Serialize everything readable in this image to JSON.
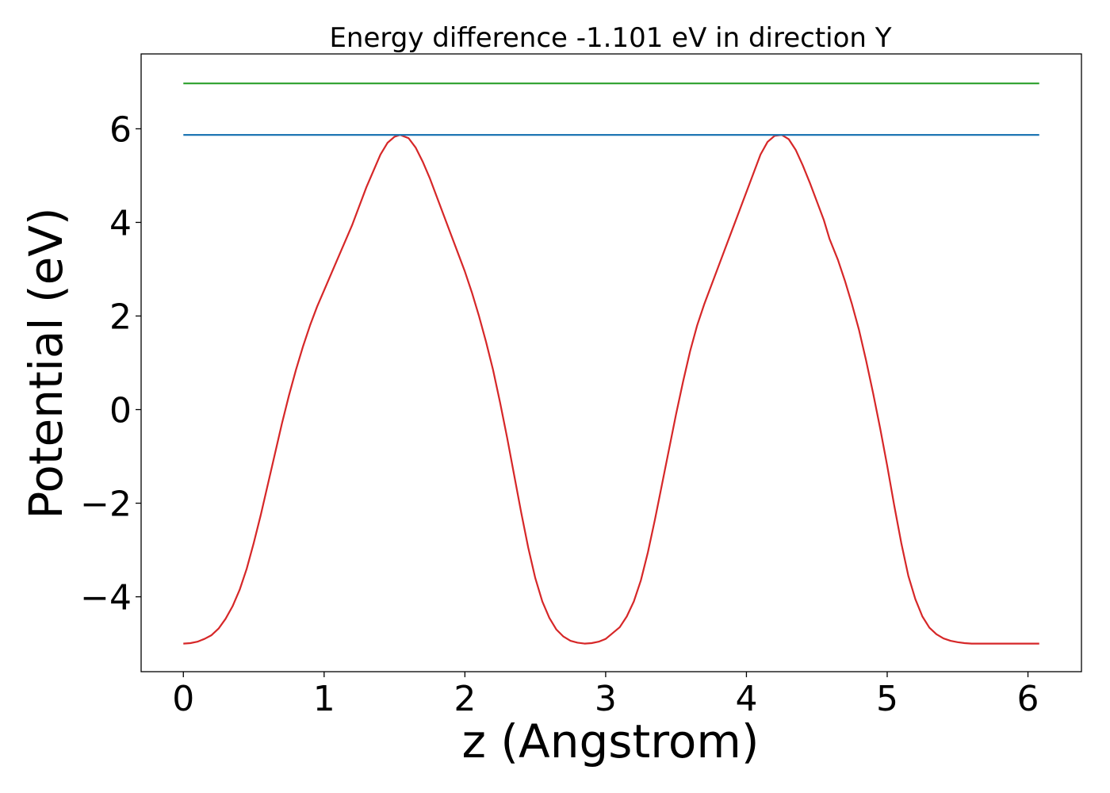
{
  "chart_data": {
    "type": "line",
    "title": "Energy difference -1.101 eV in direction Y",
    "xlabel": "z (Angstrom)",
    "ylabel": "Potential (eV)",
    "xlim": [
      -0.3,
      6.38
    ],
    "ylim": [
      -5.6,
      7.6
    ],
    "xticks": [
      0,
      1,
      2,
      3,
      4,
      5,
      6
    ],
    "xtick_labels": [
      "0",
      "1",
      "2",
      "3",
      "4",
      "5",
      "6"
    ],
    "yticks": [
      -4,
      -2,
      0,
      2,
      4,
      6
    ],
    "ytick_labels": [
      "−4",
      "−2",
      "0",
      "2",
      "4",
      "6"
    ],
    "grid": false,
    "series": [
      {
        "color": "#d62728",
        "x": [
          0.0,
          0.05,
          0.1,
          0.15,
          0.2,
          0.25,
          0.3,
          0.35,
          0.4,
          0.45,
          0.5,
          0.55,
          0.6,
          0.65,
          0.7,
          0.75,
          0.8,
          0.85,
          0.9,
          0.95,
          1.0,
          1.05,
          1.1,
          1.15,
          1.2,
          1.25,
          1.3,
          1.35,
          1.4,
          1.45,
          1.5,
          1.54,
          1.6,
          1.65,
          1.7,
          1.75,
          1.8,
          1.85,
          1.9,
          1.95,
          2.0,
          2.05,
          2.1,
          2.15,
          2.2,
          2.25,
          2.3,
          2.35,
          2.4,
          2.45,
          2.5,
          2.55,
          2.6,
          2.65,
          2.7,
          2.75,
          2.8,
          2.85,
          2.9,
          2.95,
          3.0,
          3.04,
          3.1,
          3.15,
          3.2,
          3.25,
          3.3,
          3.35,
          3.4,
          3.45,
          3.5,
          3.55,
          3.6,
          3.65,
          3.7,
          3.75,
          3.8,
          3.85,
          3.9,
          3.95,
          4.0,
          4.05,
          4.1,
          4.15,
          4.2,
          4.25,
          4.3,
          4.35,
          4.4,
          4.45,
          4.5,
          4.55,
          4.59,
          4.65,
          4.7,
          4.75,
          4.8,
          4.85,
          4.9,
          4.95,
          5.0,
          5.05,
          5.1,
          5.15,
          5.2,
          5.25,
          5.3,
          5.35,
          5.4,
          5.45,
          5.5,
          5.55,
          5.6,
          5.65,
          5.7,
          5.75,
          5.8,
          5.85,
          5.9,
          5.95,
          6.0,
          6.05,
          6.08
        ],
        "y": [
          -5.0,
          -4.99,
          -4.96,
          -4.9,
          -4.82,
          -4.68,
          -4.47,
          -4.2,
          -3.85,
          -3.4,
          -2.85,
          -2.25,
          -1.6,
          -0.95,
          -0.3,
          0.3,
          0.85,
          1.35,
          1.8,
          2.2,
          2.55,
          2.9,
          3.25,
          3.6,
          3.95,
          4.35,
          4.75,
          5.1,
          5.45,
          5.7,
          5.83,
          5.87,
          5.8,
          5.6,
          5.3,
          4.95,
          4.55,
          4.15,
          3.75,
          3.35,
          2.95,
          2.5,
          2.0,
          1.45,
          0.85,
          0.15,
          -0.6,
          -1.4,
          -2.2,
          -2.95,
          -3.6,
          -4.1,
          -4.45,
          -4.7,
          -4.85,
          -4.94,
          -4.98,
          -5.0,
          -4.99,
          -4.96,
          -4.9,
          -4.8,
          -4.65,
          -4.42,
          -4.1,
          -3.65,
          -3.05,
          -2.35,
          -1.6,
          -0.85,
          -0.1,
          0.6,
          1.25,
          1.8,
          2.25,
          2.65,
          3.05,
          3.45,
          3.85,
          4.25,
          4.65,
          5.05,
          5.45,
          5.72,
          5.85,
          5.87,
          5.78,
          5.55,
          5.22,
          4.85,
          4.45,
          4.05,
          3.65,
          3.2,
          2.75,
          2.25,
          1.7,
          1.05,
          0.35,
          -0.4,
          -1.2,
          -2.05,
          -2.85,
          -3.55,
          -4.05,
          -4.42,
          -4.66,
          -4.8,
          -4.89,
          -4.94,
          -4.97,
          -4.99,
          -5.0,
          -5.0,
          -5.0,
          -5.0,
          -5.0,
          -5.0,
          -5.0,
          -5.0,
          -5.0,
          -5.0,
          -5.0
        ]
      },
      {
        "color": "#1f77b4",
        "x": [
          0.0,
          6.08
        ],
        "y": [
          5.87,
          5.87
        ]
      },
      {
        "color": "#2ca02c",
        "x": [
          0.0,
          6.08
        ],
        "y": [
          6.97,
          6.97
        ]
      }
    ]
  }
}
